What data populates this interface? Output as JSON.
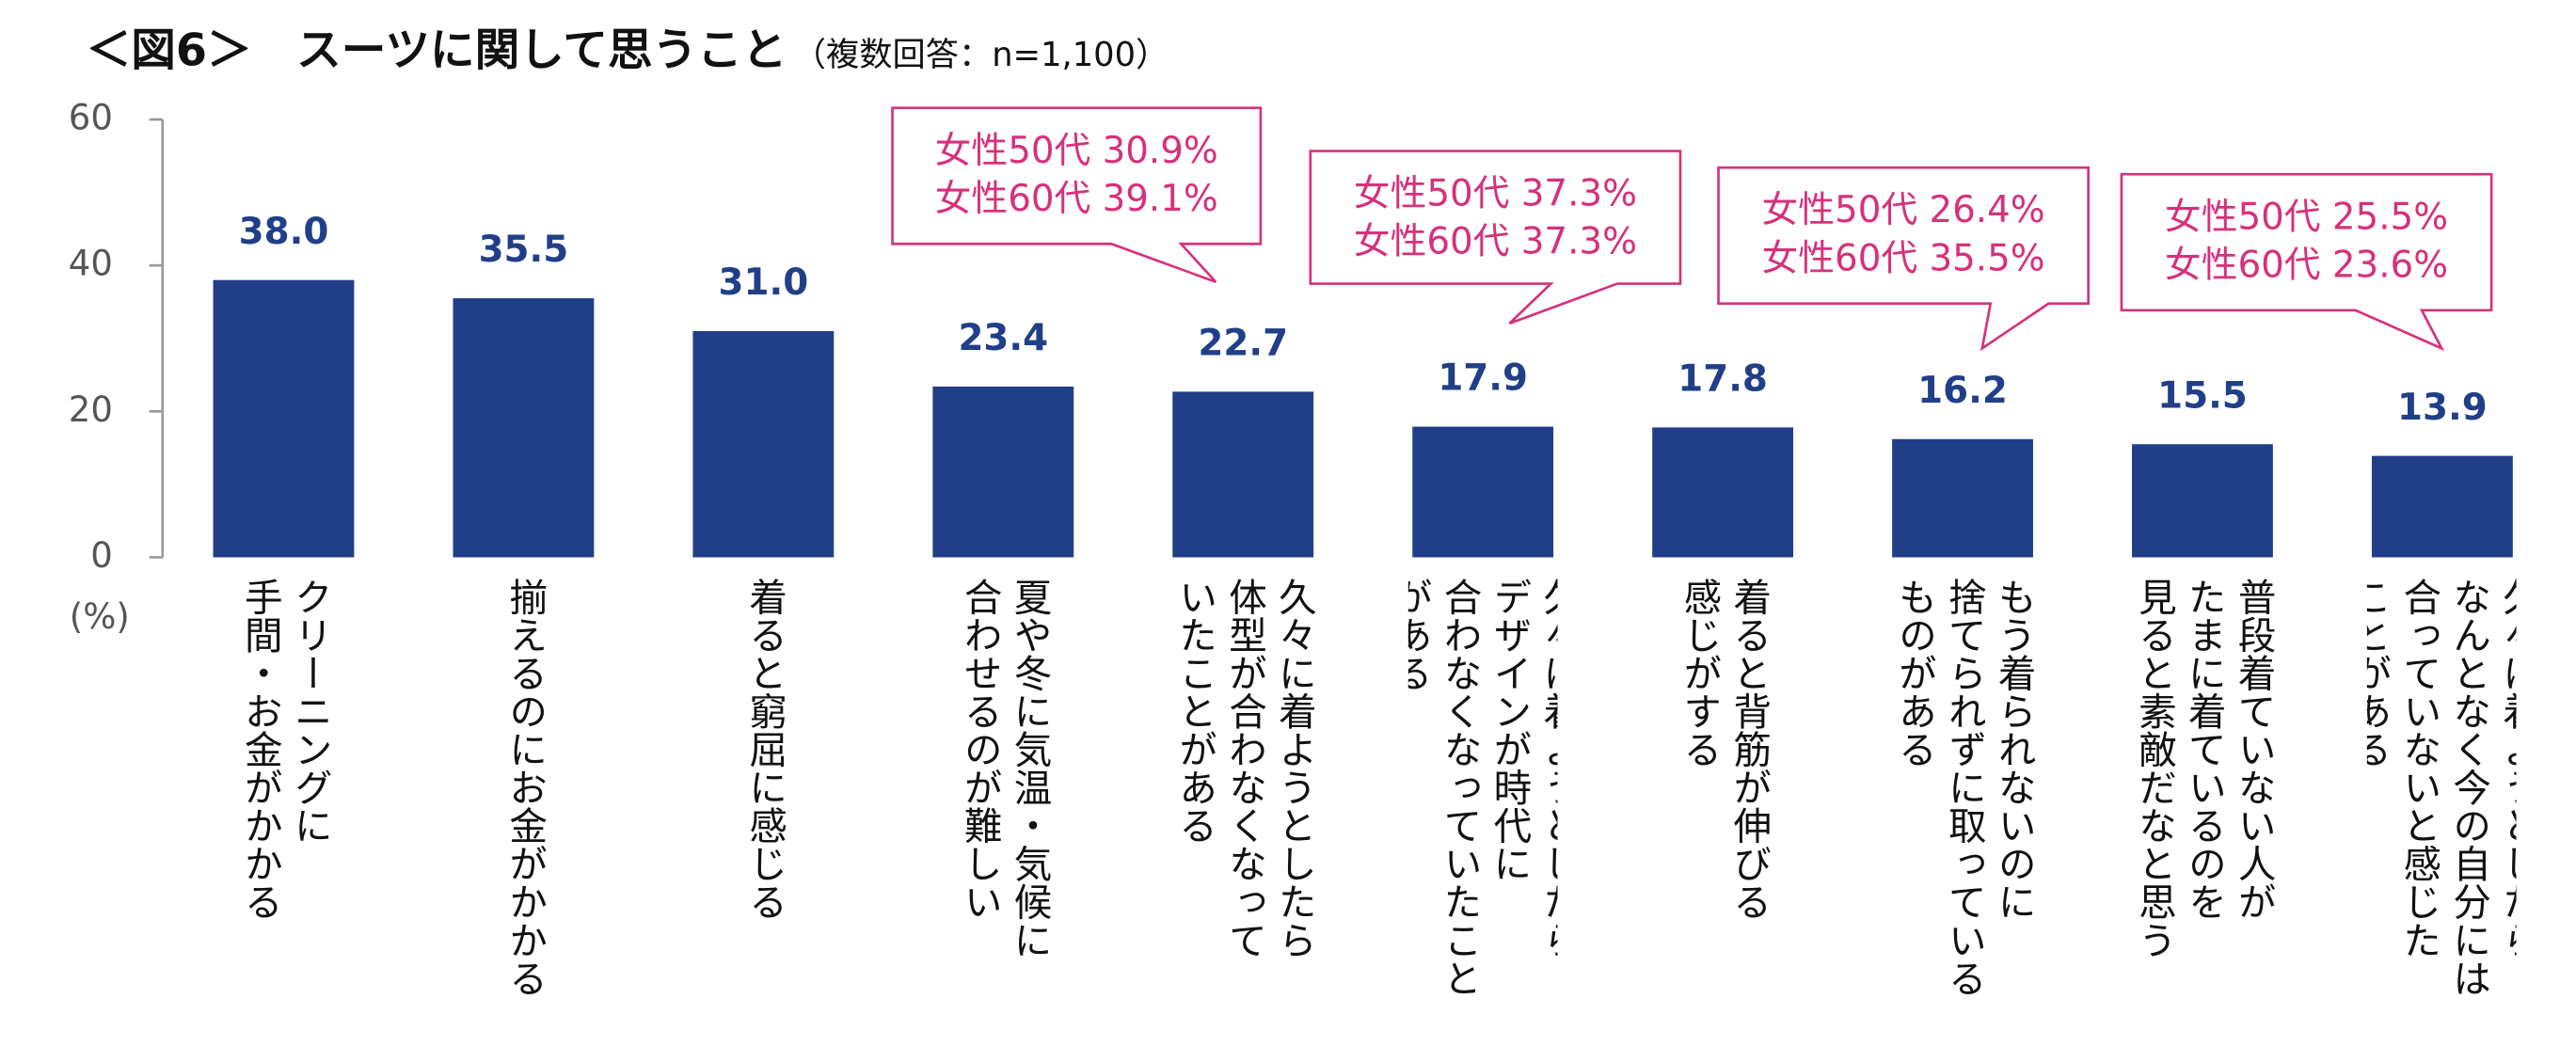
{
  "chart_data": {
    "type": "bar",
    "title": "＜図6＞　スーツに関して思うこと",
    "subtitle": "（複数回答：n=1,100）",
    "y_label": "(%)",
    "categories": [
      "クリーニングに\n手間・お金がかかる",
      "揃えるのにお金がかかる",
      "着ると窮屈に感じる",
      "夏や冬に気温・気候に\n合わせるのが難しい",
      "久々に着ようとしたら\n体型が合わなくなって\nいたことがある",
      "久々に着ようとしたら\nデザインが時代に\n合わなくなっていたこと\nがある",
      "着ると背筋が伸びる\n感じがする",
      "もう着られないのに\n捨てられずに取っている\nものがある",
      "普段着ていない人が\nたまに着ているのを\n見ると素敵だなと思う",
      "久々に着ようとしたら\nなんとなく今の自分には\n合っていないと感じた\nことがある"
    ],
    "values": [
      38.0,
      35.5,
      31.0,
      23.4,
      22.7,
      17.9,
      17.8,
      16.2,
      15.5,
      13.9
    ],
    "value_labels": [
      "38.0",
      "35.5",
      "31.0",
      "23.4",
      "22.7",
      "17.9",
      "17.8",
      "16.2",
      "15.5",
      "13.9"
    ],
    "color": "#213f88",
    "ylim": [
      0,
      60
    ],
    "yticks": [
      0,
      20,
      40,
      60
    ],
    "annotations": [
      {
        "lines": [
          "女性50代 30.9%",
          "女性60代 39.1%"
        ]
      },
      {
        "lines": [
          "女性50代 37.3%",
          "女性60代 37.3%"
        ]
      },
      {
        "lines": [
          "女性50代 26.4%",
          "女性60代 35.5%"
        ]
      },
      {
        "lines": [
          "女性50代 25.5%",
          "女性60代 23.6%"
        ]
      }
    ],
    "annotation_color": "#d6317a"
  }
}
